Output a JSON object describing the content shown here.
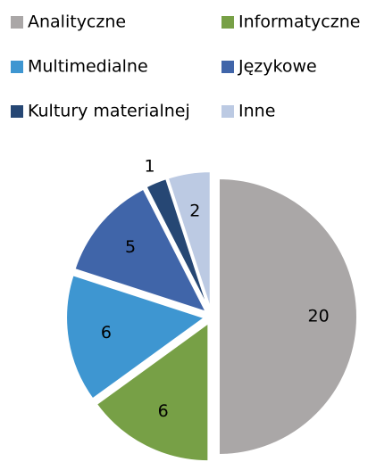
{
  "chart_data": {
    "type": "pie",
    "categories": [
      "Analityczne",
      "Informatyczne",
      "Multimedialne",
      "Językowe",
      "Kultury materialnej",
      "Inne"
    ],
    "values": [
      20,
      6,
      6,
      5,
      1,
      2
    ],
    "colors": [
      "#aaa7a7",
      "#77a046",
      "#3e96d1",
      "#4065a9",
      "#264774",
      "#bccae3"
    ]
  }
}
